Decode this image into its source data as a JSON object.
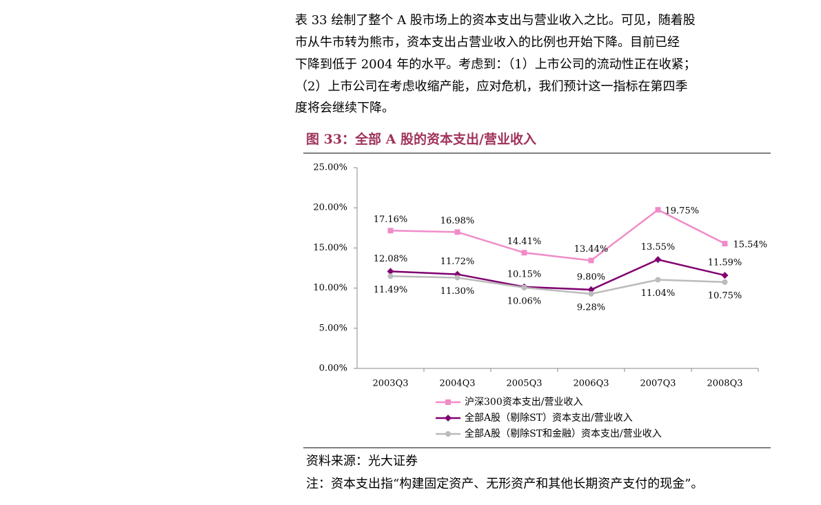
{
  "paragraph": [
    "表 33 绘制了整个 A 股市场上的资本支出与营业收入之比。可见，随着股",
    "市从牛市转为熊市，资本支出占营业收入的比例也开始下降。目前已经",
    "下降到低于 2004 年的水平。考虑到：（1）上市公司的流动性正在收紧；",
    "（2）上市公司在考虑收缩产能，应对危机，我们预计这一指标在第四季",
    "度将会继续下降。"
  ],
  "figure_title": "图 33：全部 A 股的资本支出/营业收入",
  "chart_data": {
    "type": "line",
    "categories": [
      "2003Q3",
      "2004Q3",
      "2005Q3",
      "2006Q3",
      "2007Q3",
      "2008Q3"
    ],
    "series": [
      {
        "name": "沪深300资本支出/营业收入",
        "color": "#f08cc8",
        "marker": "square",
        "values": [
          17.16,
          16.98,
          14.41,
          13.44,
          19.75,
          15.54
        ],
        "value_labels": [
          "17.16%",
          "16.98%",
          "14.41%",
          "13.44%",
          "19.75%",
          "15.54%"
        ]
      },
      {
        "name": "全部A股（剔除ST）资本支出/营业收入",
        "color": "#800070",
        "marker": "diamond",
        "values": [
          12.08,
          11.72,
          10.15,
          9.8,
          13.55,
          11.59
        ],
        "value_labels": [
          "12.08%",
          "11.72%",
          "10.15%",
          "9.80%",
          "13.55%",
          "11.59%"
        ]
      },
      {
        "name": "全部A股（剔除ST和金融）资本支出/营业收入",
        "color": "#bbbbbb",
        "marker": "circle",
        "values": [
          11.49,
          11.3,
          10.06,
          9.28,
          11.04,
          10.75
        ],
        "value_labels": [
          "11.49%",
          "11.30%",
          "10.06%",
          "9.28%",
          "11.04%",
          "10.75%"
        ]
      }
    ],
    "ylim": [
      0,
      25
    ],
    "yticks": [
      {
        "value": 0,
        "label": "0.00%"
      },
      {
        "value": 5,
        "label": "5.00%"
      },
      {
        "value": 10,
        "label": "10.00%"
      },
      {
        "value": 15,
        "label": "15.00%"
      },
      {
        "value": 20,
        "label": "20.00%"
      },
      {
        "value": 25,
        "label": "25.00%"
      }
    ],
    "grid": false
  },
  "source": "资料来源：光大证券",
  "note": "注：资本支出指“构建固定资产、无形资产和其他长期资产支付的现金”。"
}
